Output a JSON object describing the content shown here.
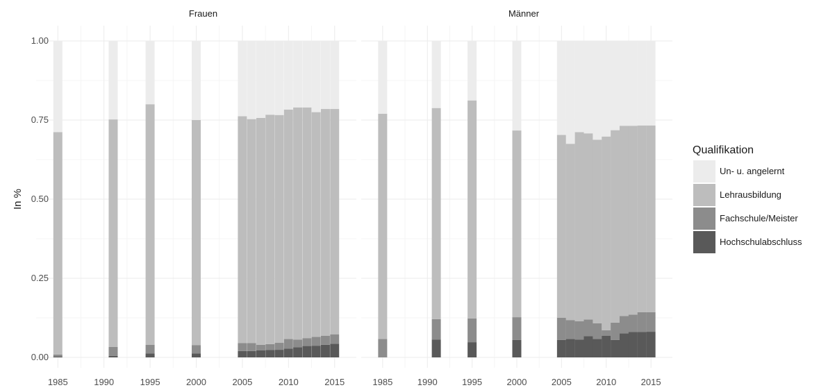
{
  "chart_data": {
    "type": "bar",
    "stacked": true,
    "ylabel": "In %",
    "xlabel": "",
    "ylim": [
      0,
      1
    ],
    "yticks": [
      "0.00",
      "0.25",
      "0.50",
      "0.75",
      "1.00"
    ],
    "xticks": [
      1985,
      1990,
      1995,
      2000,
      2005,
      2010,
      2015
    ],
    "xlim": [
      1984,
      2016
    ],
    "grid": true,
    "legend": {
      "title": "Qualifikation",
      "position": "right",
      "entries": [
        "Un- u. angelernt",
        "Lehrausbildung",
        "Fachschule/Meister",
        "Hochschulabschluss"
      ]
    },
    "colors": {
      "Un- u. angelernt": "#ececec",
      "Lehrausbildung": "#bdbdbd",
      "Fachschule/Meister": "#8c8c8c",
      "Hochschulabschluss": "#595959"
    },
    "panels": [
      {
        "label": "Frauen",
        "years": [
          1985,
          1991,
          1995,
          2000,
          2005,
          2006,
          2007,
          2008,
          2009,
          2010,
          2011,
          2012,
          2013,
          2014,
          2015
        ],
        "series": [
          {
            "name": "Hochschulabschluss",
            "values": [
              0.003,
              0.005,
              0.012,
              0.012,
              0.02,
              0.02,
              0.022,
              0.023,
              0.024,
              0.028,
              0.032,
              0.036,
              0.037,
              0.04,
              0.043
            ]
          },
          {
            "name": "Fachschule/Meister",
            "values": [
              0.006,
              0.028,
              0.028,
              0.027,
              0.025,
              0.025,
              0.018,
              0.019,
              0.022,
              0.03,
              0.024,
              0.025,
              0.028,
              0.028,
              0.03
            ]
          },
          {
            "name": "Lehrausbildung",
            "values": [
              0.703,
              0.719,
              0.76,
              0.711,
              0.717,
              0.708,
              0.717,
              0.725,
              0.72,
              0.725,
              0.734,
              0.729,
              0.71,
              0.717,
              0.712
            ]
          },
          {
            "name": "Un- u. angelernt",
            "values": [
              0.288,
              0.248,
              0.2,
              0.25,
              0.238,
              0.247,
              0.243,
              0.233,
              0.234,
              0.217,
              0.21,
              0.21,
              0.225,
              0.215,
              0.215
            ]
          }
        ]
      },
      {
        "label": "Männer",
        "years": [
          1985,
          1991,
          1995,
          2000,
          2005,
          2006,
          2007,
          2008,
          2009,
          2010,
          2011,
          2012,
          2013,
          2014,
          2015
        ],
        "series": [
          {
            "name": "Hochschulabschluss",
            "values": [
              0.0,
              0.056,
              0.048,
              0.055,
              0.055,
              0.058,
              0.056,
              0.067,
              0.058,
              0.068,
              0.055,
              0.076,
              0.08,
              0.08,
              0.081
            ]
          },
          {
            "name": "Fachschule/Meister",
            "values": [
              0.058,
              0.065,
              0.075,
              0.072,
              0.07,
              0.06,
              0.058,
              0.053,
              0.05,
              0.018,
              0.055,
              0.055,
              0.055,
              0.063,
              0.062
            ]
          },
          {
            "name": "Lehrausbildung",
            "values": [
              0.712,
              0.667,
              0.689,
              0.59,
              0.578,
              0.557,
              0.598,
              0.588,
              0.58,
              0.612,
              0.608,
              0.601,
              0.597,
              0.59,
              0.59
            ]
          },
          {
            "name": "Un- u. angelernt",
            "values": [
              0.23,
              0.212,
              0.188,
              0.283,
              0.297,
              0.325,
              0.288,
              0.292,
              0.312,
              0.302,
              0.282,
              0.268,
              0.268,
              0.267,
              0.267
            ]
          }
        ]
      }
    ]
  }
}
